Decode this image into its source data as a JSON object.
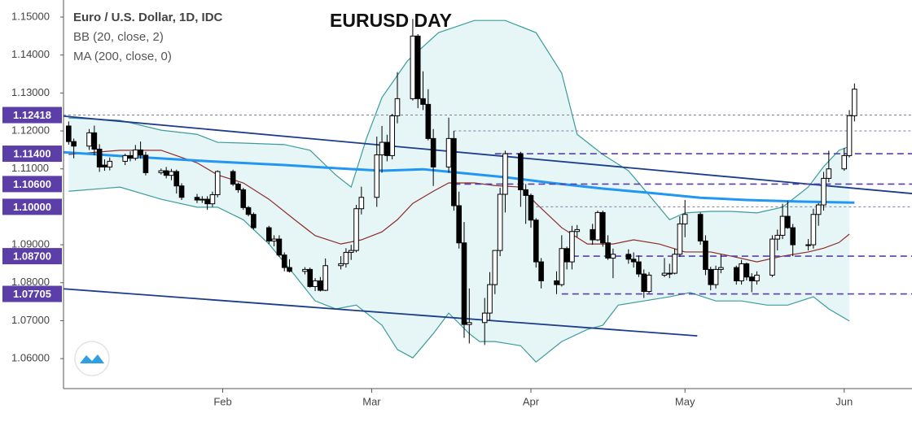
{
  "chart_data": {
    "type": "candlestick",
    "title": "EURUSD DAY",
    "symbol": "Euro / U.S. Dollar, 1D, IDC",
    "indicators": [
      "BB (20, close, 2)",
      "MA (200, close, 0)"
    ],
    "xlim": [
      0,
      165.2
    ],
    "ylim": [
      1.0521,
      1.1545
    ],
    "xticks": [
      {
        "value": 31,
        "label": "Feb"
      },
      {
        "value": 60,
        "label": "Mar"
      },
      {
        "value": 91,
        "label": "Apr"
      },
      {
        "value": 121,
        "label": "May"
      },
      {
        "value": 152,
        "label": "Jun"
      }
    ],
    "yticks": [
      {
        "value": 1.06,
        "label": "1.06000"
      },
      {
        "value": 1.07,
        "label": "1.07000"
      },
      {
        "value": 1.08,
        "label": "1.08000"
      },
      {
        "value": 1.09,
        "label": "1.09000"
      },
      {
        "value": 1.11,
        "label": "1.11000"
      },
      {
        "value": 1.12,
        "label": "1.12000"
      },
      {
        "value": 1.13,
        "label": "1.13000"
      },
      {
        "value": 1.14,
        "label": "1.14000"
      },
      {
        "value": 1.15,
        "label": "1.15000"
      }
    ],
    "up_color": "#ffffff",
    "down_color": "#000000",
    "x": [
      1,
      2,
      5,
      6,
      7,
      8,
      9,
      12,
      13,
      14,
      15,
      16,
      19,
      20,
      21,
      22,
      23,
      26,
      27,
      28,
      29,
      30,
      33,
      34,
      35,
      36,
      37,
      40,
      41,
      42,
      43,
      44,
      47,
      48,
      49,
      50,
      51,
      54,
      55,
      56,
      57,
      58,
      61,
      62,
      63,
      64,
      65,
      68,
      69,
      70,
      71,
      72,
      75,
      76,
      77,
      78,
      79,
      82,
      83,
      84,
      85,
      86,
      89,
      90,
      91,
      92,
      93,
      96,
      97,
      98,
      99,
      100,
      103,
      104,
      105,
      106,
      107,
      110,
      111,
      112,
      113,
      114,
      117,
      118,
      119,
      120,
      121,
      124,
      125,
      126,
      127,
      128,
      131,
      132,
      133,
      134,
      135,
      138,
      139,
      140,
      141,
      142,
      145,
      146,
      147,
      148,
      149,
      152,
      153,
      154
    ],
    "ohlc": [
      [
        1.1213,
        1.1225,
        1.1164,
        1.1172
      ],
      [
        1.1172,
        1.118,
        1.1128,
        1.116
      ],
      [
        1.116,
        1.1205,
        1.115,
        1.1195
      ],
      [
        1.1195,
        1.1214,
        1.1136,
        1.1152
      ],
      [
        1.1152,
        1.1165,
        1.1092,
        1.1105
      ],
      [
        1.111,
        1.1125,
        1.1095,
        1.1105
      ],
      [
        1.1105,
        1.113,
        1.1096,
        1.112
      ],
      [
        1.112,
        1.114,
        1.111,
        1.1135
      ],
      [
        1.1135,
        1.1146,
        1.112,
        1.1128
      ],
      [
        1.1128,
        1.1163,
        1.1122,
        1.115
      ],
      [
        1.115,
        1.1172,
        1.1127,
        1.1136
      ],
      [
        1.1136,
        1.1145,
        1.1083,
        1.109
      ],
      [
        1.109,
        1.1101,
        1.1085,
        1.1095
      ],
      [
        1.1095,
        1.1105,
        1.1075,
        1.1083
      ],
      [
        1.1083,
        1.11,
        1.107,
        1.1093
      ],
      [
        1.1093,
        1.1098,
        1.1035,
        1.1055
      ],
      [
        1.1055,
        1.1062,
        1.1018,
        1.1025
      ],
      [
        1.1025,
        1.1034,
        1.101,
        1.1018
      ],
      [
        1.1018,
        1.1028,
        1.101,
        1.102
      ],
      [
        1.102,
        1.1028,
        1.0992,
        1.1008
      ],
      [
        1.1008,
        1.104,
        1.1,
        1.1032
      ],
      [
        1.1032,
        1.1096,
        1.1025,
        1.1093
      ],
      [
        1.1093,
        1.1098,
        1.1055,
        1.106
      ],
      [
        1.106,
        1.1064,
        1.1037,
        1.1045
      ],
      [
        1.1045,
        1.105,
        1.0992,
        1.0998
      ],
      [
        1.0998,
        1.1002,
        1.0975,
        1.098
      ],
      [
        1.098,
        1.0985,
        1.094,
        1.0945
      ],
      [
        1.0945,
        1.095,
        1.0902,
        1.091
      ],
      [
        1.091,
        1.0925,
        1.0896,
        1.0915
      ],
      [
        1.0915,
        1.0925,
        1.0868,
        1.0873
      ],
      [
        1.0873,
        1.088,
        1.083,
        1.084
      ],
      [
        1.084,
        1.0862,
        1.0827,
        1.083
      ],
      [
        1.083,
        1.0841,
        1.0822,
        1.0835
      ],
      [
        1.0835,
        1.084,
        1.0787,
        1.079
      ],
      [
        1.079,
        1.0812,
        1.0778,
        1.0805
      ],
      [
        1.0805,
        1.0815,
        1.0777,
        1.078
      ],
      [
        1.078,
        1.0864,
        1.0778,
        1.0845
      ],
      [
        1.0845,
        1.087,
        1.0835,
        1.085
      ],
      [
        1.085,
        1.0891,
        1.084,
        1.088
      ],
      [
        1.088,
        1.09,
        1.086,
        1.0885
      ],
      [
        1.0885,
        1.1005,
        1.088,
        1.0995
      ],
      [
        1.0995,
        1.1053,
        1.098,
        1.1025
      ],
      [
        1.1025,
        1.1185,
        1.1,
        1.1137
      ],
      [
        1.1137,
        1.1213,
        1.109,
        1.117
      ],
      [
        1.117,
        1.119,
        1.112,
        1.1135
      ],
      [
        1.1135,
        1.1245,
        1.1125,
        1.124
      ],
      [
        1.124,
        1.1355,
        1.122,
        1.1285
      ],
      [
        1.1285,
        1.1495,
        1.128,
        1.145
      ],
      [
        1.145,
        1.1455,
        1.126,
        1.1285
      ],
      [
        1.1285,
        1.1357,
        1.1255,
        1.127
      ],
      [
        1.127,
        1.131,
        1.1175,
        1.118
      ],
      [
        1.118,
        1.1205,
        1.1055,
        1.1105
      ],
      [
        1.1105,
        1.1235,
        1.109,
        1.118
      ],
      [
        1.118,
        1.12,
        1.099,
        1.1003
      ],
      [
        1.1003,
        1.104,
        1.089,
        1.0905
      ],
      [
        1.0905,
        1.096,
        1.0655,
        1.069
      ],
      [
        1.069,
        1.0785,
        1.064,
        1.0695
      ],
      [
        1.0695,
        1.076,
        1.0636,
        1.072
      ],
      [
        1.072,
        1.0828,
        1.07,
        1.0795
      ],
      [
        1.0795,
        1.0885,
        1.077,
        1.0885
      ],
      [
        1.0885,
        1.105,
        1.087,
        1.1033
      ],
      [
        1.1033,
        1.1148,
        1.0985,
        1.114
      ],
      [
        1.114,
        1.1145,
        1.1,
        1.1045
      ],
      [
        1.1045,
        1.106,
        1.0955,
        1.103
      ],
      [
        1.103,
        1.1035,
        1.0945,
        1.0965
      ],
      [
        1.0965,
        1.097,
        1.084,
        1.0855
      ],
      [
        1.0855,
        1.0865,
        1.0785,
        1.0805
      ],
      [
        1.0805,
        1.083,
        1.077,
        1.0795
      ],
      [
        1.0795,
        1.0925,
        1.079,
        1.089
      ],
      [
        1.089,
        1.0895,
        1.0835,
        1.0855
      ],
      [
        1.0855,
        1.095,
        1.0835,
        1.0935
      ],
      [
        1.0935,
        1.0952,
        1.092,
        1.094
      ],
      [
        1.094,
        1.0955,
        1.09,
        1.0913
      ],
      [
        1.0913,
        1.099,
        1.091,
        1.0985
      ],
      [
        1.0985,
        1.099,
        1.0895,
        1.0905
      ],
      [
        1.0905,
        1.0925,
        1.086,
        1.0865
      ],
      [
        1.0865,
        1.089,
        1.0812,
        1.0875
      ],
      [
        1.0875,
        1.0888,
        1.085,
        1.0862
      ],
      [
        1.0862,
        1.088,
        1.084,
        1.0855
      ],
      [
        1.0855,
        1.0872,
        1.0815,
        1.0823
      ],
      [
        1.0823,
        1.0835,
        1.076,
        1.0777
      ],
      [
        1.0777,
        1.0828,
        1.0772,
        1.082
      ],
      [
        1.082,
        1.0865,
        1.0815,
        1.0825
      ],
      [
        1.0825,
        1.085,
        1.0812,
        1.0825
      ],
      [
        1.0825,
        1.089,
        1.0822,
        1.0875
      ],
      [
        1.0875,
        1.0975,
        1.0868,
        1.0955
      ],
      [
        1.0955,
        1.1018,
        1.092,
        1.098
      ],
      [
        1.098,
        1.0985,
        1.09,
        1.091
      ],
      [
        1.091,
        1.0925,
        1.082,
        1.0835
      ],
      [
        1.0835,
        1.0842,
        1.078,
        1.0795
      ],
      [
        1.0795,
        1.0845,
        1.0785,
        1.0835
      ],
      [
        1.0835,
        1.0875,
        1.0825,
        1.084
      ],
      [
        1.084,
        1.0845,
        1.0795,
        1.0805
      ],
      [
        1.0805,
        1.086,
        1.0795,
        1.085
      ],
      [
        1.085,
        1.0853,
        1.0806,
        1.0815
      ],
      [
        1.0815,
        1.0825,
        1.0775,
        1.0805
      ],
      [
        1.0805,
        1.083,
        1.0795,
        1.082
      ],
      [
        1.082,
        1.0925,
        1.0815,
        1.0915
      ],
      [
        1.0915,
        1.094,
        1.0885,
        1.0925
      ],
      [
        1.0925,
        1.1008,
        1.0915,
        1.0975
      ],
      [
        1.0975,
        1.1015,
        1.0942,
        1.0945
      ],
      [
        1.0945,
        1.0955,
        1.087,
        1.09
      ],
      [
        1.09,
        1.0915,
        1.0885,
        1.09
      ],
      [
        1.09,
        1.0995,
        1.089,
        1.098
      ],
      [
        1.098,
        1.101,
        1.095,
        1.1005
      ],
      [
        1.1005,
        1.1092,
        1.099,
        1.1075
      ],
      [
        1.1075,
        1.1148,
        1.1065,
        1.11
      ],
      [
        1.11,
        1.1155,
        1.1095,
        1.1135
      ],
      [
        1.1135,
        1.1255,
        1.113,
        1.124
      ],
      [
        1.124,
        1.1325,
        1.1225,
        1.131
      ]
    ],
    "band_fill": "#e6f5f6",
    "overlays": [
      {
        "x": [
          1,
          11,
          19,
          26,
          30,
          35,
          43,
          48,
          53,
          56,
          59,
          62,
          67,
          73,
          80,
          86,
          92,
          97,
          100,
          105,
          110,
          114,
          118,
          121,
          126,
          130,
          135,
          140,
          145,
          148,
          151,
          153
        ],
        "values": [
          1.1234,
          1.1228,
          1.1202,
          1.1191,
          1.117,
          1.1168,
          1.1164,
          1.1149,
          1.1084,
          1.1052,
          1.1181,
          1.1288,
          1.1385,
          1.1459,
          1.1491,
          1.1491,
          1.1459,
          1.1352,
          1.1191,
          1.1138,
          1.1095,
          1.1031,
          1.0966,
          1.0984,
          1.0988,
          1.0988,
          1.0984,
          1.0999,
          1.1052,
          1.1106,
          1.1149,
          1.1159
        ],
        "color": "#3c9c9c",
        "width": 1.2
      },
      {
        "x": [
          1,
          11,
          19,
          26,
          30,
          35,
          40,
          45,
          49,
          53,
          57,
          62,
          65,
          68,
          72,
          75,
          79,
          81,
          84,
          89,
          92,
          97,
          102,
          105,
          108,
          113,
          118,
          122,
          127,
          132,
          137,
          141,
          146,
          149,
          153
        ],
        "values": [
          1.1041,
          1.1052,
          1.102,
          1.0999,
          1.0999,
          1.0966,
          1.0902,
          1.082,
          1.0752,
          1.0731,
          1.0741,
          1.0688,
          1.0624,
          1.0602,
          1.0666,
          1.072,
          1.0666,
          1.0645,
          1.0645,
          1.0634,
          1.0591,
          1.0645,
          1.0677,
          1.0688,
          1.0741,
          1.0752,
          1.0763,
          1.0774,
          1.0752,
          1.0752,
          1.0741,
          1.0741,
          1.0763,
          1.0731,
          1.0699
        ],
        "color": "#3c9c9c",
        "width": 1.2
      },
      {
        "x": [
          1,
          11,
          19,
          26,
          30,
          35,
          40,
          45,
          49,
          54,
          58,
          62,
          65,
          68,
          72,
          75,
          80,
          84,
          89,
          92,
          97,
          102,
          107,
          111,
          116,
          121,
          126,
          130,
          135,
          140,
          145,
          148,
          151,
          153
        ],
        "values": [
          1.1138,
          1.1149,
          1.1149,
          1.1116,
          1.1084,
          1.1063,
          1.102,
          1.0966,
          1.0924,
          1.0902,
          1.0913,
          1.0934,
          1.0966,
          1.1009,
          1.1041,
          1.1063,
          1.1063,
          1.1056,
          1.1052,
          1.1009,
          1.0945,
          1.0902,
          1.0902,
          1.0913,
          1.0902,
          1.0881,
          1.0881,
          1.087,
          1.0855,
          1.087,
          1.0881,
          1.0891,
          1.0906,
          1.0928
        ],
        "color": "#8e2b2b",
        "width": 1.2
      },
      {
        "x": [
          0,
          11,
          27,
          43,
          54,
          62,
          70,
          76,
          86,
          95,
          105,
          114,
          124,
          133,
          143,
          154
        ],
        "values": [
          1.1144,
          1.1134,
          1.1121,
          1.111,
          1.1101,
          1.1095,
          1.1099,
          1.1091,
          1.1078,
          1.1063,
          1.1048,
          1.1037,
          1.1024,
          1.1018,
          1.1014,
          1.1011
        ],
        "color": "#2196f3",
        "width": 3
      }
    ],
    "trendlines": [
      {
        "x": [
          0,
          165.2
        ],
        "values": [
          1.1239,
          1.1035
        ],
        "color": "#1b3c8c"
      },
      {
        "x": [
          0,
          123.4
        ],
        "values": [
          1.0784,
          1.066
        ],
        "color": "#1b3c8c"
      }
    ],
    "box_color": "#5b3ea8",
    "levels": [
      {
        "value": 1.12418,
        "x_from": 0,
        "style": "dotted",
        "color": "#7f7fa0",
        "box": true
      },
      {
        "value": 1.12,
        "x_from": 76,
        "style": "dotted",
        "color": "#7f7fa0",
        "box": false
      },
      {
        "value": 1.114,
        "label": "1.11400",
        "x_from": 84,
        "style": "dashed",
        "color": "#5b3ea8",
        "box": true
      },
      {
        "value": 1.106,
        "label": "1.10600",
        "x_from": 76,
        "style": "dashed",
        "color": "#5b3ea8",
        "box": true
      },
      {
        "value": 1.1,
        "label": "1.10000",
        "x_from": 92,
        "style": "dotted",
        "color": "#7f7fa0",
        "box": true
      },
      {
        "value": 1.087,
        "label": "1.08700",
        "x_from": 97,
        "style": "dashed",
        "color": "#5b3ea8",
        "box": true
      },
      {
        "value": 1.07705,
        "x_from": 97,
        "style": "dashed",
        "color": "#5b3ea8",
        "box": true
      }
    ]
  }
}
